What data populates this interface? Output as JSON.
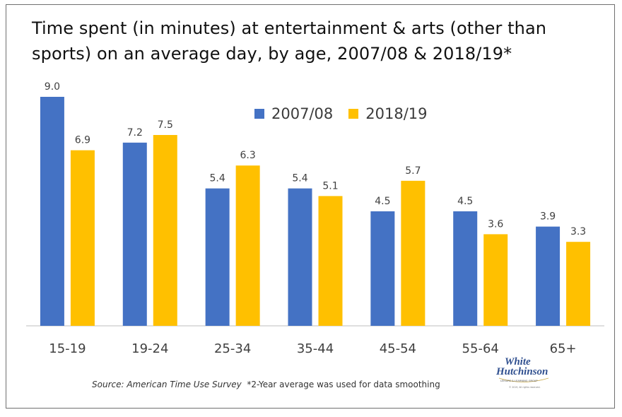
{
  "chart_data": {
    "type": "bar",
    "title": "Time spent (in minutes) at entertainment & arts (other than sports) on an average day, by age, 2007/08 & 2018/19*",
    "categories": [
      "15-19",
      "19-24",
      "25-34",
      "35-44",
      "45-54",
      "55-64",
      "65+"
    ],
    "series": [
      {
        "name": "2007/08",
        "color": "#4472c4",
        "values": [
          9.0,
          7.2,
          5.4,
          5.4,
          4.5,
          4.5,
          3.9
        ],
        "labels": [
          "9.0",
          "7.2",
          "5.4",
          "5.4",
          "4.5",
          "4.5",
          "3.9"
        ]
      },
      {
        "name": "2018/19",
        "color": "#ffc000",
        "values": [
          6.9,
          7.5,
          6.3,
          5.1,
          5.7,
          3.6,
          3.3
        ],
        "labels": [
          "6.9",
          "7.5",
          "6.3",
          "5.1",
          "5.7",
          "3.6",
          "3.3"
        ]
      }
    ],
    "xlabel": "",
    "ylabel": "",
    "ylim": [
      0,
      9.0
    ],
    "grid": false,
    "legend_position": "top-center"
  },
  "title": "Time spent (in minutes) at entertainment & arts (other than sports) on an average day, by age, 2007/08 & 2018/19*",
  "legend": {
    "series1": "2007/08",
    "series2": "2018/19"
  },
  "footnote": {
    "source": "Source: American Time Use Survey",
    "note": "*2-Year average was used for data smoothing"
  },
  "logo": {
    "line1": "White",
    "line2": "Hutchinson",
    "tagline": "LEISURE & LEARNING GROUP",
    "copyright": "© 2019, All rights reserved."
  }
}
